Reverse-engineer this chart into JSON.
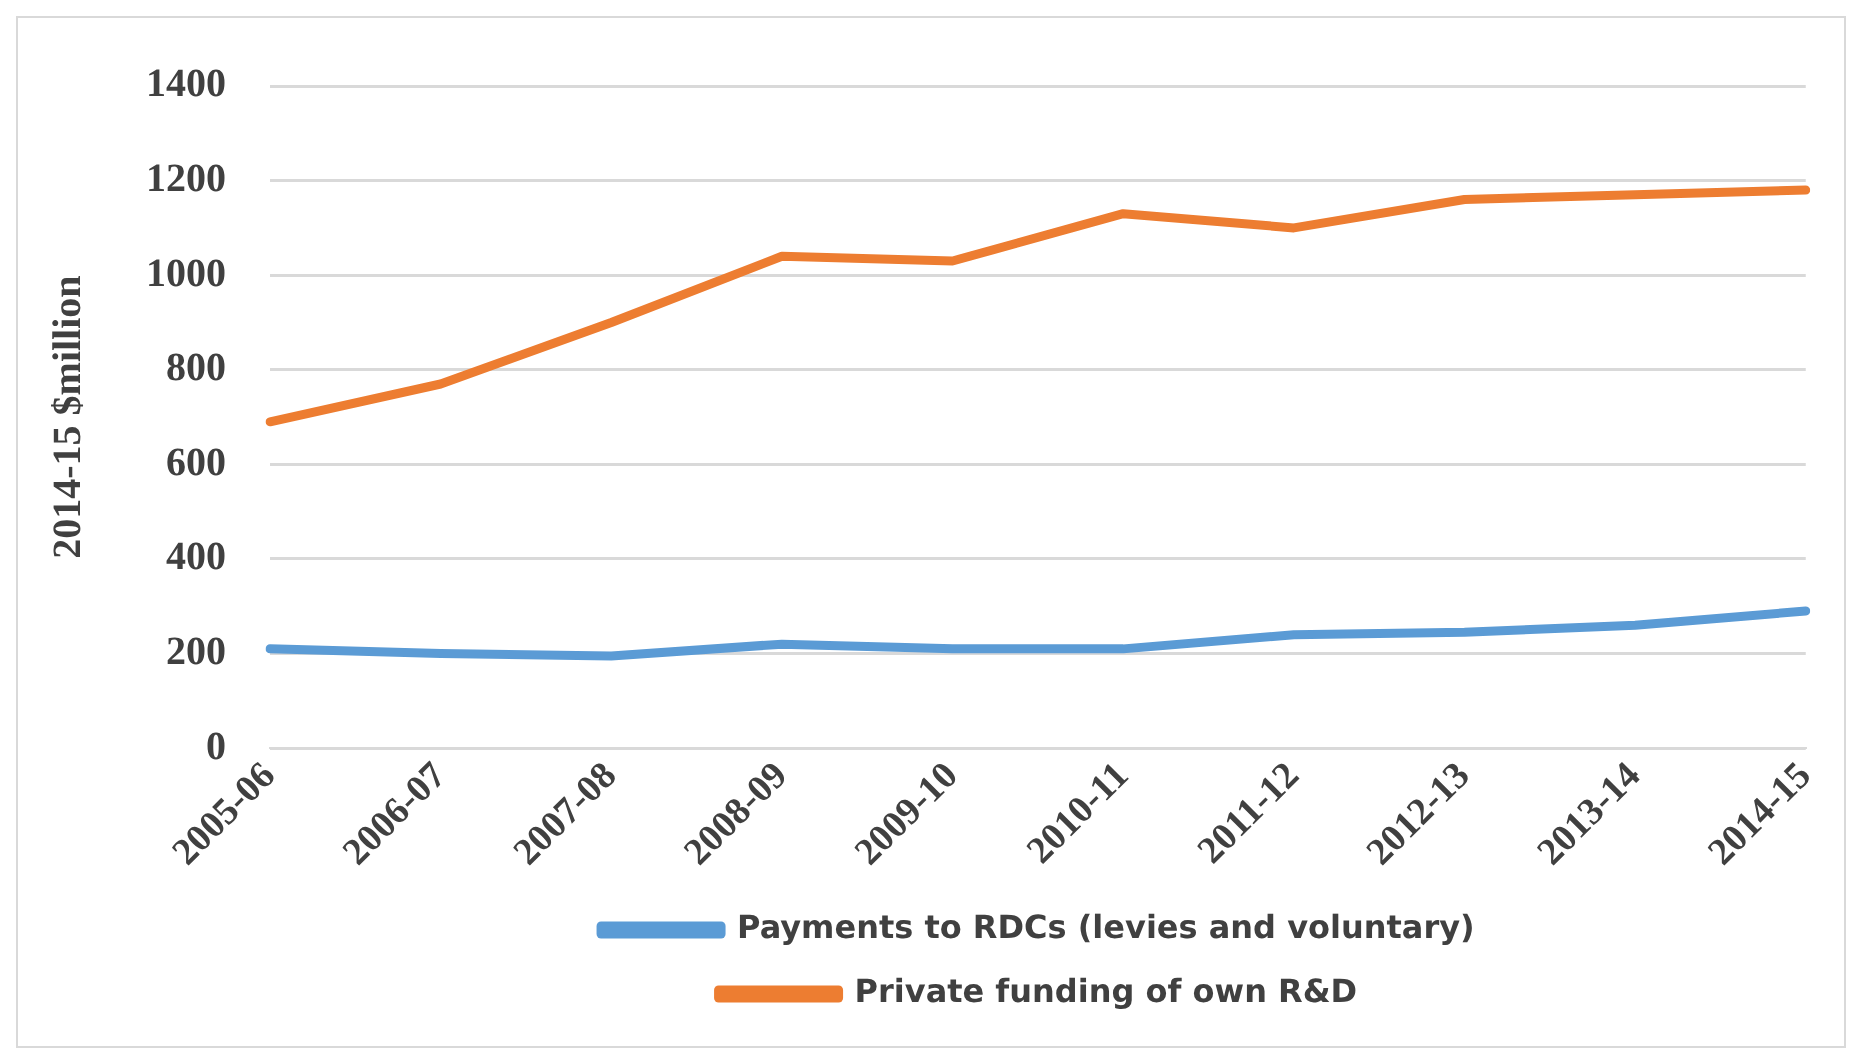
{
  "chart_data": {
    "type": "line",
    "ylabel": "2014-15 $million",
    "categories": [
      "2005-06",
      "2006-07",
      "2007-08",
      "2008-09",
      "2009-10",
      "2010-11",
      "2011-12",
      "2012-13",
      "2013-14",
      "2014-15"
    ],
    "series": [
      {
        "name": "Payments to RDCs (levies and voluntary)",
        "color": "#5b9bd5",
        "values": [
          210,
          200,
          195,
          220,
          210,
          210,
          240,
          245,
          260,
          290
        ]
      },
      {
        "name": "Private funding of own R&D",
        "color": "#ed7d31",
        "values": [
          690,
          770,
          900,
          1040,
          1030,
          1130,
          1100,
          1160,
          1170,
          1180
        ]
      }
    ],
    "ylim": [
      0,
      1400
    ],
    "yticks": [
      0,
      200,
      400,
      600,
      800,
      1000,
      1200,
      1400
    ],
    "grid": "y",
    "legend": "bottom",
    "marker": "none",
    "line_style": "solid"
  }
}
